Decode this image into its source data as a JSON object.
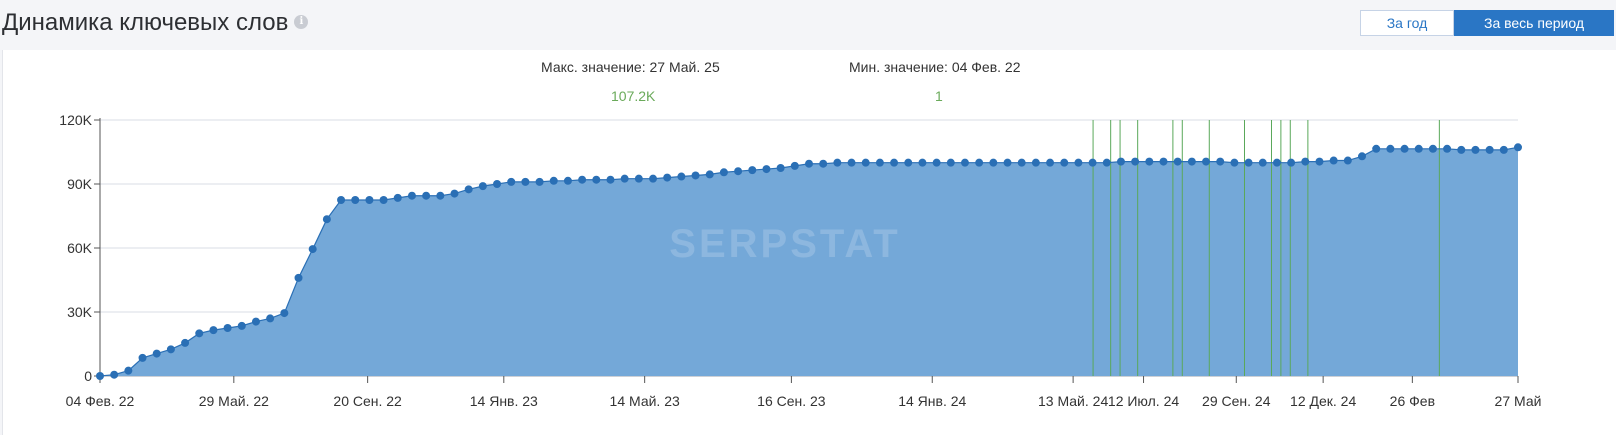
{
  "header": {
    "title": "Динамика ключевых слов",
    "info_icon": "info-icon",
    "btn_year": "За год",
    "btn_all": "За весь период",
    "active": "За весь период"
  },
  "stats": {
    "max_label": "Макс. значение: 27 Май. 25",
    "max_value": "107.2K",
    "min_label": "Мин. значение: 04 Фев. 22",
    "min_value": "1"
  },
  "colors": {
    "area": "#74a8d8",
    "line": "#2a6fb5",
    "point": "#2a6fb5",
    "marker": "#5aa85a",
    "grid": "#d9dce6",
    "accent": "#2a76c5"
  },
  "chart_data": {
    "type": "area",
    "watermark": "SERPSTAT",
    "x_start": "2022-02-04",
    "x_end": "2025-05-27",
    "xticks": [
      {
        "date": "2022-02-04",
        "label": "04 Фев. 22"
      },
      {
        "date": "2022-05-29",
        "label": "29 Май. 22"
      },
      {
        "date": "2022-09-20",
        "label": "20 Сен. 22"
      },
      {
        "date": "2023-01-14",
        "label": "14 Янв. 23"
      },
      {
        "date": "2023-05-14",
        "label": "14 Май. 23"
      },
      {
        "date": "2023-09-16",
        "label": "16 Сен. 23"
      },
      {
        "date": "2024-01-14",
        "label": "14 Янв. 24"
      },
      {
        "date": "2024-05-13",
        "label": "13 Май. 24"
      },
      {
        "date": "2024-07-12",
        "label": "12 Июл. 24"
      },
      {
        "date": "2024-09-29",
        "label": "29 Сен. 24"
      },
      {
        "date": "2024-12-12",
        "label": "12 Дек. 24"
      },
      {
        "date": "2025-02-26",
        "label": "26 Фев"
      },
      {
        "date": "2025-05-27",
        "label": "27 Май"
      }
    ],
    "ylim": [
      0,
      120000
    ],
    "yticks": [
      {
        "value": 0,
        "label": "0"
      },
      {
        "value": 30000,
        "label": "30K"
      },
      {
        "value": 60000,
        "label": "60K"
      },
      {
        "value": 90000,
        "label": "90K"
      },
      {
        "value": 120000,
        "label": "120K"
      }
    ],
    "grid": true,
    "series": [
      {
        "values": [
          1,
          600,
          2500,
          8500,
          10500,
          12500,
          15500,
          20000,
          21500,
          22500,
          23500,
          25500,
          27000,
          29500,
          46000,
          59500,
          73500,
          82500,
          82500,
          82500,
          82500,
          83500,
          84500,
          84500,
          84500,
          85500,
          87500,
          89000,
          90000,
          91000,
          91000,
          91000,
          91500,
          91500,
          92000,
          92000,
          92000,
          92500,
          92500,
          92500,
          93000,
          93500,
          94000,
          94500,
          95500,
          96000,
          96500,
          97000,
          97500,
          98500,
          99500,
          99500,
          100000,
          100000,
          100000,
          100000,
          100000,
          100000,
          100000,
          100000,
          100000,
          100000,
          100000,
          100000,
          100000,
          100000,
          100000,
          100000,
          100000,
          100000,
          100000,
          100000,
          100500,
          100500,
          100500,
          100500,
          100500,
          100500,
          100500,
          100500,
          100000,
          100000,
          100000,
          100000,
          100000,
          100500,
          100500,
          101000,
          101000,
          103000,
          106500,
          106500,
          106500,
          106500,
          106500,
          106500,
          106000,
          106000,
          106000,
          106000,
          107200
        ]
      }
    ],
    "markers": [
      "2024-05-30",
      "2024-06-14",
      "2024-06-22",
      "2024-07-07",
      "2024-08-06",
      "2024-08-14",
      "2024-09-06",
      "2024-10-06",
      "2024-10-29",
      "2024-11-06",
      "2024-11-14",
      "2024-11-29",
      "2025-03-21"
    ]
  }
}
